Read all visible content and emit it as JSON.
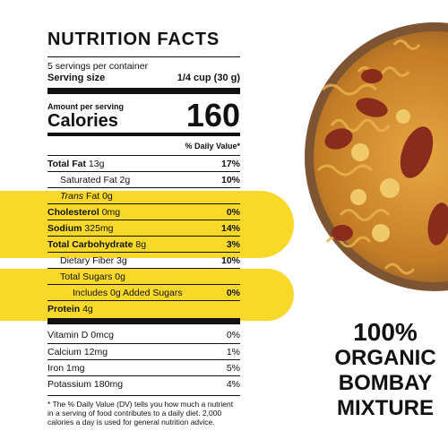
{
  "panel": {
    "title": "NUTRITION FACTS",
    "servings": "5 servings per container",
    "serving_size_label": "Serving size",
    "serving_size_value": "1/4 cup (30 g)",
    "amount_per_serving": "Amount per serving",
    "calories_label": "Calories",
    "calories_value": "160",
    "daily_value_header": "% Daily Value*"
  },
  "nutrients": {
    "total_fat": {
      "name": "Total Fat",
      "amount": "13g",
      "pct": "17%"
    },
    "saturated_fat": {
      "name": "Saturated Fat",
      "amount": "2g",
      "pct": "10%"
    },
    "trans_fat": {
      "name": "Trans",
      "amount": "Fat 0g"
    },
    "cholesterol": {
      "name": "Cholesterol",
      "amount": "0mg",
      "pct": "0%"
    },
    "sodium": {
      "name": "Sodium",
      "amount": "325mg",
      "pct": "14%"
    },
    "total_carb": {
      "name": "Total Carbohydrate",
      "amount": "8g",
      "pct": "3%"
    },
    "dietary_fiber": {
      "name": "Dietary Fiber",
      "amount": "3g",
      "pct": "10%"
    },
    "total_sugars": {
      "name": "Total Sugars",
      "amount": "0g"
    },
    "added_sugars": {
      "name": "Includes 0g Added Sugars",
      "pct": "0%"
    },
    "protein": {
      "name": "Protein",
      "amount": "4g"
    }
  },
  "vitamins": [
    {
      "name": "Vitamin D 0mcg",
      "pct": "0%"
    },
    {
      "name": "Calcium 12mg",
      "pct": "1%"
    },
    {
      "name": "Iron 1mg",
      "pct": "5%"
    },
    {
      "name": "Potassium 180mg",
      "pct": "4%"
    }
  ],
  "footnote": "* The % Daily Value (DV) tells you how much a nutrient in a serving of food contributes to a daily diet. 2,000 calories a day is used for general nutrition advice.",
  "headline": {
    "line1": "100%",
    "line2": "ORGANIC",
    "line3": "BOMBAY",
    "line4": "MIXTURE"
  },
  "colors": {
    "highlight": "#f8d92a",
    "text": "#111111"
  }
}
